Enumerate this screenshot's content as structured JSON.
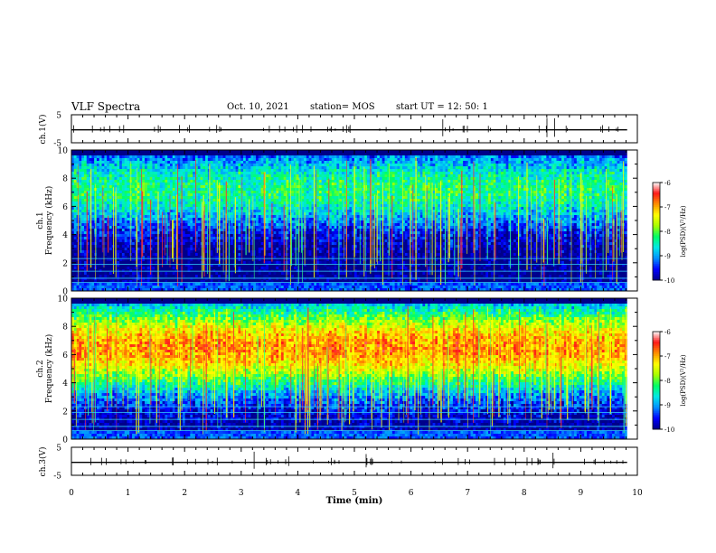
{
  "header": {
    "title": "VLF Spectra",
    "date": "Oct. 10, 2021",
    "station": "station= MOS",
    "start": "start  UT  =    12: 50: 1"
  },
  "chart_data": {
    "type": "heatmap",
    "title": "VLF Spectra",
    "time_axis": {
      "label": "Time (min)",
      "range": [
        0,
        10
      ],
      "ticks": [
        "0",
        "1",
        "2",
        "3",
        "4",
        "5",
        "6",
        "7",
        "8",
        "9",
        "10"
      ]
    },
    "data_end_min": 9.82,
    "waveforms": [
      {
        "id": "ch1-waveform",
        "ylabel": "ch.1(V)",
        "range": [
          -5,
          5
        ],
        "ticks": [
          "5",
          "-5"
        ],
        "level": -0.4
      },
      {
        "id": "ch3-waveform",
        "ylabel": "ch.3(V)",
        "range": [
          -5,
          5
        ],
        "ticks": [
          "5",
          "-5"
        ],
        "level": -0.4
      }
    ],
    "spectrograms": [
      {
        "id": "ch1-spectrogram",
        "ylabel_top": "ch.1",
        "ylabel": "Frequency (kHz)",
        "yrange": [
          0,
          10
        ],
        "yticks": [
          "0",
          "2",
          "4",
          "6",
          "8",
          "10"
        ],
        "band_center_khz": 7.2,
        "band_halfwidth_khz": 2.0,
        "band_peak_log": -8.3,
        "colorbar": {
          "label": "log(PSD)(V²/Hz)",
          "range": [
            -10,
            -6
          ],
          "ticks": [
            "-6",
            "-7",
            "-8",
            "-9",
            "-10"
          ]
        }
      },
      {
        "id": "ch2-spectrogram",
        "ylabel_top": "ch.2",
        "ylabel": "Frequency (kHz)",
        "yrange": [
          0,
          10
        ],
        "yticks": [
          "0",
          "2",
          "4",
          "6",
          "8",
          "10"
        ],
        "band_center_khz": 6.5,
        "band_halfwidth_khz": 2.3,
        "band_peak_log": -6.9,
        "colorbar": {
          "label": "log(PSD)(V²/Hz)",
          "range": [
            -10,
            -6
          ],
          "ticks": [
            "-6",
            "-7",
            "-8",
            "-9",
            "-10"
          ]
        }
      }
    ],
    "colormap": [
      "#00008a",
      "#0000ff",
      "#0090ff",
      "#00e8e8",
      "#00ff66",
      "#a8ff00",
      "#ffff00",
      "#ff9000",
      "#ff1818",
      "#ffffff"
    ]
  }
}
